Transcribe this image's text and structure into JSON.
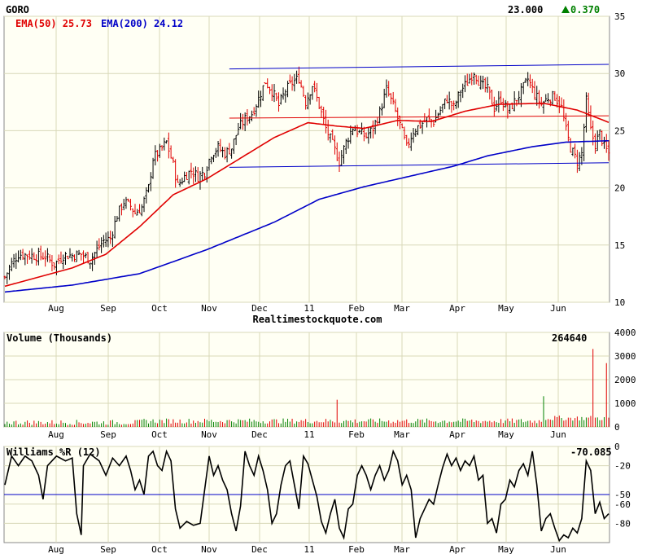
{
  "header": {
    "symbol": "GORO",
    "last_price": "23.000",
    "change": "0.370",
    "change_arrow": "up-triangle-icon",
    "ema50_label": "EMA(50) 25.73",
    "ema200_label": "EMA(200) 24.12"
  },
  "colors": {
    "panel_bg": "#fffff4",
    "grid": "#d8d8b8",
    "up_bar": "#000000",
    "down_bar": "#e00000",
    "ema50": "#e00000",
    "ema200": "#0000c8",
    "trendline": "#0000c8",
    "hline_red": "#e00000",
    "change_green": "#008000",
    "vol_up": "#008000",
    "vol_down": "#e00000",
    "williams_line": "#000000",
    "williams_ref": "#0000c8"
  },
  "watermark": "Realtimestockquote.com",
  "months": [
    "Aug",
    "Sep",
    "Oct",
    "Nov",
    "Dec",
    "11",
    "Feb",
    "Mar",
    "Apr",
    "May",
    "Jun"
  ],
  "chart_data": [
    {
      "type": "line",
      "title": "GORO",
      "price_axis": {
        "ticks": [
          10,
          15,
          20,
          25,
          30,
          35
        ],
        "ylim": [
          10,
          35
        ]
      },
      "x_axis_ticks": [
        "Aug",
        "Sep",
        "Oct",
        "Nov",
        "Dec",
        "11",
        "Feb",
        "Mar",
        "Apr",
        "May",
        "Jun"
      ],
      "anchors": [
        {
          "d": 0,
          "c": 12.2
        },
        {
          "d": 3,
          "c": 13.4
        },
        {
          "d": 6,
          "c": 14.2
        },
        {
          "d": 12,
          "c": 14.1
        },
        {
          "d": 18,
          "c": 14.0
        },
        {
          "d": 22,
          "c": 13.3
        },
        {
          "d": 26,
          "c": 14.1
        },
        {
          "d": 30,
          "c": 14.1
        },
        {
          "d": 34,
          "c": 14.2
        },
        {
          "d": 38,
          "c": 13.7
        },
        {
          "d": 41,
          "c": 14.6
        },
        {
          "d": 44,
          "c": 15.4
        },
        {
          "d": 47,
          "c": 15.6
        },
        {
          "d": 50,
          "c": 17.6
        },
        {
          "d": 53,
          "c": 18.8
        },
        {
          "d": 56,
          "c": 18.4
        },
        {
          "d": 58,
          "c": 17.8
        },
        {
          "d": 61,
          "c": 18.3
        },
        {
          "d": 64,
          "c": 20.0
        },
        {
          "d": 66,
          "c": 22.6
        },
        {
          "d": 69,
          "c": 23.2
        },
        {
          "d": 72,
          "c": 24.0
        },
        {
          "d": 75,
          "c": 22.0
        },
        {
          "d": 77,
          "c": 20.2
        },
        {
          "d": 80,
          "c": 21.0
        },
        {
          "d": 83,
          "c": 21.5
        },
        {
          "d": 86,
          "c": 21.0
        },
        {
          "d": 89,
          "c": 21.4
        },
        {
          "d": 92,
          "c": 23.0
        },
        {
          "d": 95,
          "c": 23.5
        },
        {
          "d": 98,
          "c": 23.0
        },
        {
          "d": 101,
          "c": 23.5
        },
        {
          "d": 104,
          "c": 25.2
        },
        {
          "d": 107,
          "c": 26.0
        },
        {
          "d": 110,
          "c": 26.5
        },
        {
          "d": 113,
          "c": 27.8
        },
        {
          "d": 116,
          "c": 29.3
        },
        {
          "d": 119,
          "c": 28.5
        },
        {
          "d": 122,
          "c": 27.2
        },
        {
          "d": 125,
          "c": 28.5
        },
        {
          "d": 128,
          "c": 29.2
        },
        {
          "d": 131,
          "c": 29.6
        },
        {
          "d": 134,
          "c": 27.5
        },
        {
          "d": 137,
          "c": 29.0
        },
        {
          "d": 140,
          "c": 27.2
        },
        {
          "d": 143,
          "c": 25.2
        },
        {
          "d": 146,
          "c": 23.8
        },
        {
          "d": 149,
          "c": 22.3
        },
        {
          "d": 152,
          "c": 24.0
        },
        {
          "d": 155,
          "c": 25.3
        },
        {
          "d": 158,
          "c": 24.8
        },
        {
          "d": 161,
          "c": 24.5
        },
        {
          "d": 164,
          "c": 25.2
        },
        {
          "d": 167,
          "c": 26.6
        },
        {
          "d": 170,
          "c": 28.6
        },
        {
          "d": 173,
          "c": 27.2
        },
        {
          "d": 176,
          "c": 25.5
        },
        {
          "d": 179,
          "c": 23.5
        },
        {
          "d": 182,
          "c": 25.0
        },
        {
          "d": 185,
          "c": 25.5
        },
        {
          "d": 188,
          "c": 26.0
        },
        {
          "d": 191,
          "c": 25.8
        },
        {
          "d": 194,
          "c": 26.8
        },
        {
          "d": 197,
          "c": 27.8
        },
        {
          "d": 200,
          "c": 27.0
        },
        {
          "d": 203,
          "c": 28.5
        },
        {
          "d": 206,
          "c": 29.2
        },
        {
          "d": 209,
          "c": 30.2
        },
        {
          "d": 212,
          "c": 29.0
        },
        {
          "d": 215,
          "c": 28.6
        },
        {
          "d": 218,
          "c": 27.0
        },
        {
          "d": 221,
          "c": 27.8
        },
        {
          "d": 224,
          "c": 26.7
        },
        {
          "d": 227,
          "c": 27.5
        },
        {
          "d": 230,
          "c": 28.4
        },
        {
          "d": 233,
          "c": 29.5
        },
        {
          "d": 236,
          "c": 28.2
        },
        {
          "d": 239,
          "c": 27.3
        },
        {
          "d": 242,
          "c": 27.9
        },
        {
          "d": 245,
          "c": 28.0
        },
        {
          "d": 248,
          "c": 27.0
        },
        {
          "d": 250,
          "c": 25.0
        },
        {
          "d": 252,
          "c": 23.5
        },
        {
          "d": 255,
          "c": 22.3
        },
        {
          "d": 257,
          "c": 23.0
        },
        {
          "d": 259,
          "c": 27.6
        },
        {
          "d": 261,
          "c": 25.0
        },
        {
          "d": 263,
          "c": 23.8
        },
        {
          "d": 265,
          "c": 24.8
        },
        {
          "d": 267,
          "c": 23.6
        },
        {
          "d": 269,
          "c": 23.0
        }
      ],
      "series": [
        {
          "name": "EMA(50) 25.73",
          "values": [
            [
              0,
              11.4
            ],
            [
              30,
              13.0
            ],
            [
              45,
              14.2
            ],
            [
              60,
              16.6
            ],
            [
              75,
              19.4
            ],
            [
              90,
              20.8
            ],
            [
              105,
              22.6
            ],
            [
              120,
              24.4
            ],
            [
              135,
              25.7
            ],
            [
              148,
              25.4
            ],
            [
              160,
              25.2
            ],
            [
              175,
              25.9
            ],
            [
              190,
              25.8
            ],
            [
              205,
              26.7
            ],
            [
              220,
              27.3
            ],
            [
              240,
              27.4
            ],
            [
              255,
              26.8
            ],
            [
              269,
              25.73
            ]
          ]
        },
        {
          "name": "EMA(200) 24.12",
          "values": [
            [
              0,
              10.9
            ],
            [
              30,
              11.5
            ],
            [
              60,
              12.5
            ],
            [
              90,
              14.6
            ],
            [
              120,
              17.0
            ],
            [
              140,
              19.0
            ],
            [
              160,
              20.1
            ],
            [
              180,
              21.0
            ],
            [
              200,
              21.9
            ],
            [
              215,
              22.8
            ],
            [
              235,
              23.6
            ],
            [
              250,
              24.0
            ],
            [
              269,
              24.12
            ]
          ]
        }
      ],
      "overlays": {
        "upper_trendline": [
          [
            100,
            30.4
          ],
          [
            269,
            30.8
          ]
        ],
        "lower_trendline": [
          [
            100,
            21.8
          ],
          [
            269,
            22.2
          ]
        ],
        "resistance_line": [
          [
            100,
            26.1
          ],
          [
            269,
            26.3
          ]
        ]
      }
    },
    {
      "type": "bar",
      "title": "Volume (Thousands)",
      "last_value": "264640",
      "axis_ticks": [
        0,
        1000,
        2000,
        3000,
        4000
      ],
      "ylim": [
        0,
        4000
      ],
      "spikes": [
        {
          "d": 148,
          "v": 1150
        },
        {
          "d": 240,
          "v": 1300
        },
        {
          "d": 262,
          "v": 3300
        },
        {
          "d": 268,
          "v": 2700
        }
      ]
    },
    {
      "type": "line",
      "title": "Williams %R (12)",
      "last_value": "-70.085",
      "axis_ticks": [
        0,
        -20,
        -50,
        -60,
        -80
      ],
      "ylim": [
        -100,
        0
      ],
      "reference_line": -50,
      "values": [
        [
          0,
          -40
        ],
        [
          3,
          -10
        ],
        [
          6,
          -20
        ],
        [
          9,
          -10
        ],
        [
          12,
          -15
        ],
        [
          15,
          -30
        ],
        [
          17,
          -55
        ],
        [
          19,
          -20
        ],
        [
          23,
          -10
        ],
        [
          27,
          -15
        ],
        [
          30,
          -12
        ],
        [
          32,
          -70
        ],
        [
          34,
          -92
        ],
        [
          35,
          -20
        ],
        [
          38,
          -8
        ],
        [
          42,
          -15
        ],
        [
          45,
          -30
        ],
        [
          48,
          -12
        ],
        [
          51,
          -20
        ],
        [
          54,
          -10
        ],
        [
          56,
          -25
        ],
        [
          58,
          -45
        ],
        [
          60,
          -35
        ],
        [
          62,
          -50
        ],
        [
          64,
          -10
        ],
        [
          66,
          -5
        ],
        [
          68,
          -20
        ],
        [
          70,
          -25
        ],
        [
          72,
          -5
        ],
        [
          74,
          -15
        ],
        [
          76,
          -65
        ],
        [
          78,
          -85
        ],
        [
          81,
          -78
        ],
        [
          84,
          -82
        ],
        [
          87,
          -80
        ],
        [
          89,
          -45
        ],
        [
          91,
          -10
        ],
        [
          93,
          -30
        ],
        [
          95,
          -20
        ],
        [
          97,
          -35
        ],
        [
          99,
          -45
        ],
        [
          101,
          -70
        ],
        [
          103,
          -88
        ],
        [
          105,
          -62
        ],
        [
          107,
          -5
        ],
        [
          109,
          -20
        ],
        [
          111,
          -30
        ],
        [
          113,
          -10
        ],
        [
          115,
          -25
        ],
        [
          117,
          -45
        ],
        [
          119,
          -80
        ],
        [
          121,
          -70
        ],
        [
          123,
          -40
        ],
        [
          125,
          -20
        ],
        [
          127,
          -15
        ],
        [
          129,
          -40
        ],
        [
          131,
          -65
        ],
        [
          133,
          -10
        ],
        [
          135,
          -18
        ],
        [
          137,
          -35
        ],
        [
          139,
          -52
        ],
        [
          141,
          -78
        ],
        [
          143,
          -90
        ],
        [
          145,
          -70
        ],
        [
          147,
          -55
        ],
        [
          149,
          -85
        ],
        [
          151,
          -95
        ],
        [
          153,
          -65
        ],
        [
          155,
          -60
        ],
        [
          157,
          -30
        ],
        [
          159,
          -20
        ],
        [
          161,
          -30
        ],
        [
          163,
          -45
        ],
        [
          165,
          -30
        ],
        [
          167,
          -20
        ],
        [
          169,
          -35
        ],
        [
          171,
          -25
        ],
        [
          173,
          -5
        ],
        [
          175,
          -15
        ],
        [
          177,
          -40
        ],
        [
          179,
          -30
        ],
        [
          181,
          -45
        ],
        [
          183,
          -95
        ],
        [
          185,
          -75
        ],
        [
          187,
          -65
        ],
        [
          189,
          -55
        ],
        [
          191,
          -60
        ],
        [
          193,
          -40
        ],
        [
          195,
          -22
        ],
        [
          197,
          -8
        ],
        [
          199,
          -20
        ],
        [
          201,
          -12
        ],
        [
          203,
          -25
        ],
        [
          205,
          -15
        ],
        [
          207,
          -20
        ],
        [
          209,
          -10
        ],
        [
          211,
          -35
        ],
        [
          213,
          -30
        ],
        [
          215,
          -80
        ],
        [
          217,
          -75
        ],
        [
          219,
          -90
        ],
        [
          221,
          -60
        ],
        [
          223,
          -55
        ],
        [
          225,
          -35
        ],
        [
          227,
          -42
        ],
        [
          229,
          -25
        ],
        [
          231,
          -18
        ],
        [
          233,
          -30
        ],
        [
          235,
          -5
        ],
        [
          237,
          -40
        ],
        [
          239,
          -88
        ],
        [
          241,
          -75
        ],
        [
          243,
          -70
        ],
        [
          245,
          -85
        ],
        [
          247,
          -98
        ],
        [
          249,
          -92
        ],
        [
          251,
          -95
        ],
        [
          253,
          -85
        ],
        [
          255,
          -90
        ],
        [
          257,
          -75
        ],
        [
          259,
          -15
        ],
        [
          261,
          -25
        ],
        [
          263,
          -70
        ],
        [
          265,
          -58
        ],
        [
          267,
          -75
        ],
        [
          269,
          -70
        ]
      ]
    }
  ]
}
